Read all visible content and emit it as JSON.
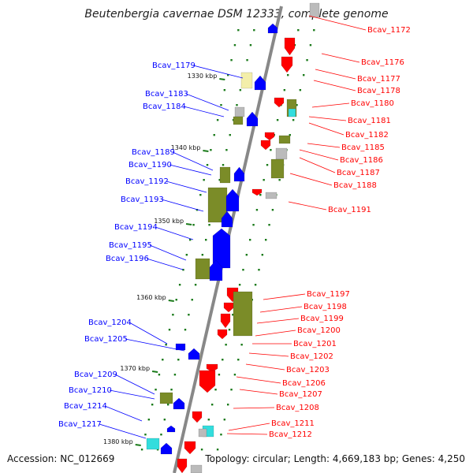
{
  "title": "Beutenbergia cavernae DSM 12333, complete genome",
  "accession": "Accession: NC_012669",
  "summary": "Topology: circular; Length: 4,669,183 bp; Genes: 4,250",
  "colors": {
    "forward": "#0000ff",
    "reverse": "#ff0000",
    "olive": "#7b8c28",
    "light_yellow": "#f3eeaa",
    "grey": "#bbbbbb",
    "cyan": "#33dddd",
    "backbone": "#888888",
    "tick": "#1a7a1a"
  },
  "scale_labels": [
    "1330 kbp",
    "1340 kbp",
    "1350 kbp",
    "1360 kbp",
    "1370 kbp",
    "1380 kbp"
  ],
  "left_genes": [
    "Bcav_1179",
    "Bcav_1183",
    "Bcav_1184",
    "Bcav_1189",
    "Bcav_1190",
    "Bcav_1192",
    "Bcav_1193",
    "Bcav_1194",
    "Bcav_1195",
    "Bcav_1196",
    "Bcav_1204",
    "Bcav_1205",
    "Bcav_1209",
    "Bcav_1210",
    "Bcav_1214",
    "Bcav_1217"
  ],
  "right_genes": [
    "Bcav_1172",
    "Bcav_1176",
    "Bcav_1177",
    "Bcav_1178",
    "Bcav_1180",
    "Bcav_1181",
    "Bcav_1182",
    "Bcav_1185",
    "Bcav_1186",
    "Bcav_1187",
    "Bcav_1188",
    "Bcav_1191",
    "Bcav_1197",
    "Bcav_1198",
    "Bcav_1199",
    "Bcav_1200",
    "Bcav_1201",
    "Bcav_1202",
    "Bcav_1203",
    "Bcav_1206",
    "Bcav_1207",
    "Bcav_1208",
    "Bcav_1211",
    "Bcav_1212"
  ]
}
